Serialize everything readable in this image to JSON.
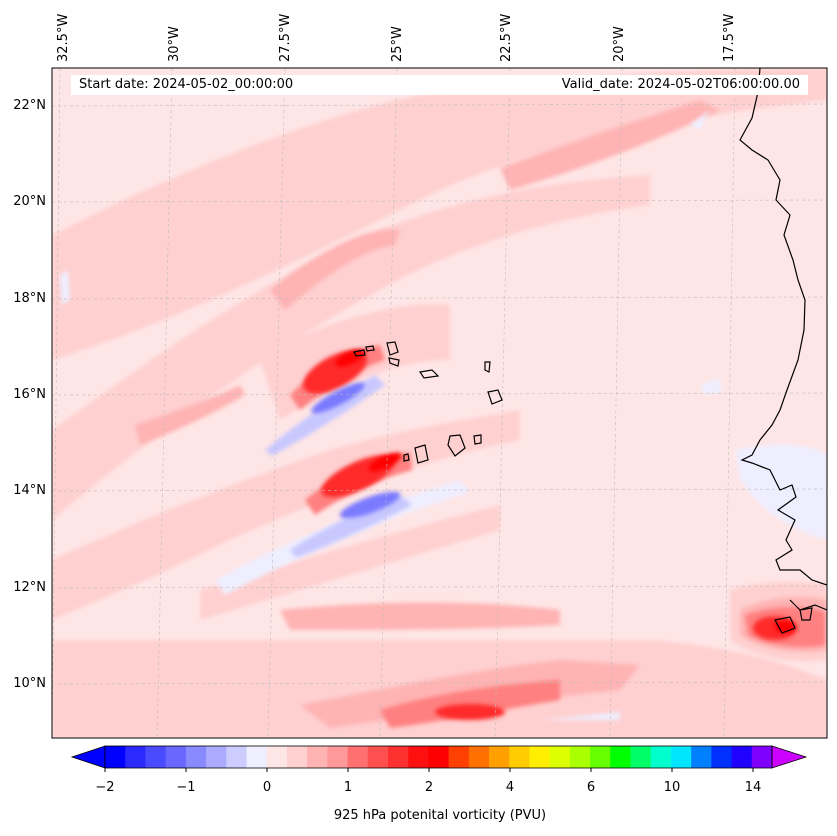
{
  "map": {
    "longitude_labels": [
      "32.5°W",
      "30°W",
      "27.5°W",
      "25°W",
      "22.5°W",
      "20°W",
      "17.5°W"
    ],
    "latitude_labels": [
      "22°N",
      "20°N",
      "18°N",
      "16°N",
      "14°N",
      "12°N",
      "10°N"
    ],
    "start_date": "Start date: 2024-05-02_00:00:00",
    "valid_date": "Valid_date: 2024-05-02T06:00:00.00",
    "field_colors": {
      "background": "#ffe6e6",
      "light_pink": "#ffd0d0",
      "pink": "#ffb3b3",
      "salmon": "#ff8080",
      "red": "#ff3030",
      "deep_red": "#ff0000",
      "pale_blue": "#eeeeff",
      "light_blue": "#c8c8ff",
      "blue": "#8080ff",
      "deep_blue": "#5050ff"
    }
  },
  "colorbar": {
    "title": "925 hPa potenital vorticity (PVU)",
    "ticks": [
      "−2",
      "−1",
      "0",
      "1",
      "2",
      "4",
      "6",
      "10",
      "14"
    ],
    "colors": [
      "#0000ff",
      "#2a2aff",
      "#4a4aff",
      "#6868ff",
      "#8a8aff",
      "#aaaaff",
      "#ccccff",
      "#eeeeff",
      "#ffe6e6",
      "#ffd0d0",
      "#ffb3b3",
      "#ff9999",
      "#ff7070",
      "#ff5050",
      "#ff3030",
      "#ff1010",
      "#ff0000",
      "#ff4000",
      "#ff7000",
      "#ffa000",
      "#ffcc00",
      "#ffee00",
      "#ddff00",
      "#aaff00",
      "#66ff00",
      "#00ff00",
      "#00ff66",
      "#00ffcc",
      "#00e6ff",
      "#0080ff",
      "#0030ff",
      "#2000ff",
      "#8000ff"
    ],
    "extend_low_color": "#0000ff",
    "extend_high_color": "#cc00ff"
  }
}
